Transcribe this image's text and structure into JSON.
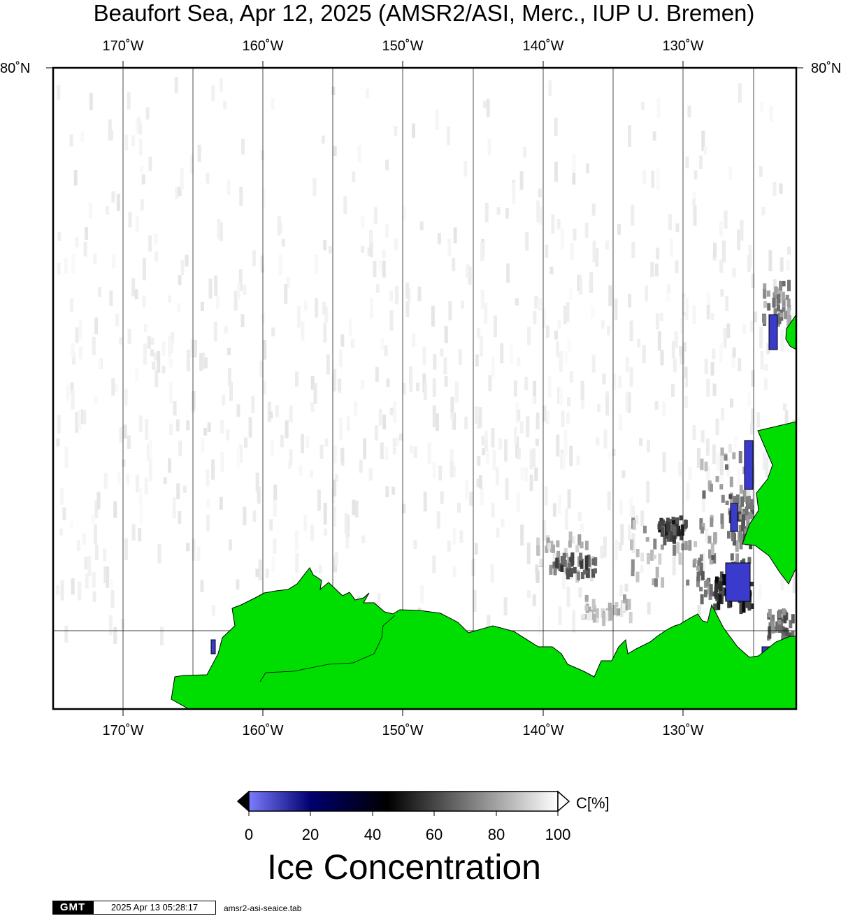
{
  "title": "Beaufort Sea, Apr 12, 2025 (AMSR2/ASI, Merc., IUP U. Bremen)",
  "longitude_ticks": [
    "170˚W",
    "160˚W",
    "150˚W",
    "140˚W",
    "130˚W"
  ],
  "latitude_label_left": "80˚N",
  "latitude_label_right": "80˚N",
  "colorbar": {
    "ticks": [
      "0",
      "20",
      "40",
      "60",
      "80",
      "100"
    ],
    "unit": "C[%]",
    "title": "Ice Concentration",
    "colors": {
      "low": "#7b7bff",
      "mid_blue": "#00006e",
      "mid": "#000000",
      "high": "#ffffff"
    }
  },
  "colors": {
    "land": "#00dd00",
    "ocean": "#ffffff",
    "frame": "#000000",
    "low_ice": "#3a3acc"
  },
  "footer": {
    "logo": "GMT",
    "timestamp": "2025 Apr 13 05:28:17",
    "filename": "amsr2-asi-seaice.tab"
  }
}
